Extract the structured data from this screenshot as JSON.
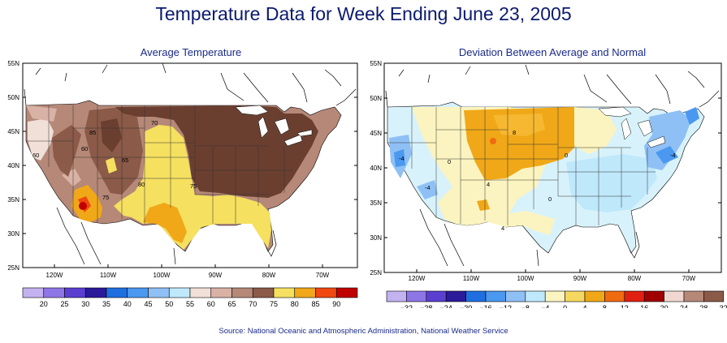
{
  "page": {
    "title": "Temperature Data for Week Ending June 23, 2005",
    "source": "Source:  National Oceanic and Atmospheric Administration, National Weather Service"
  },
  "maps": [
    {
      "id": "avg",
      "subtitle": "Average Temperature",
      "lat_labels": [
        "55N",
        "50N",
        "45N",
        "40N",
        "35N",
        "30N",
        "25N"
      ],
      "lon_labels": [
        "120W",
        "110W",
        "100W",
        "90W",
        "80W",
        "70W"
      ],
      "contour_labels": [
        "60",
        "65",
        "70",
        "75",
        "75",
        "75",
        "80",
        "85",
        "60"
      ],
      "legend": {
        "colors": [
          "#c3b2f0",
          "#8f76e6",
          "#5a3fd0",
          "#2b1a9a",
          "#1f6fe0",
          "#4a98f0",
          "#8fc0f5",
          "#bfe8fb",
          "#f0e0d8",
          "#d9b2a6",
          "#b58878",
          "#8b5a48",
          "#f5e060",
          "#f0a818",
          "#f04810",
          "#c00000"
        ],
        "labels": [
          "20",
          "25",
          "30",
          "35",
          "40",
          "45",
          "50",
          "55",
          "60",
          "65",
          "70",
          "75",
          "80",
          "85",
          "90"
        ]
      }
    },
    {
      "id": "dev",
      "subtitle": "Deviation Between Average and Normal",
      "lat_labels": [
        "55N",
        "50N",
        "45N",
        "40N",
        "35N",
        "30N",
        "25N"
      ],
      "lon_labels": [
        "120W",
        "110W",
        "100W",
        "90W",
        "80W",
        "70W"
      ],
      "contour_labels": [
        "4",
        "8",
        "0",
        "-4",
        "4",
        "-4",
        "0",
        "0",
        "-4"
      ],
      "legend": {
        "colors": [
          "#c3b2f0",
          "#8f76e6",
          "#5a3fd0",
          "#2b1a9a",
          "#1f6fe0",
          "#4a98f0",
          "#8fc0f5",
          "#bfe8fb",
          "#fbf4c0",
          "#f5d860",
          "#f0a818",
          "#f06a10",
          "#e02010",
          "#a00000",
          "#f0d8d0",
          "#b58878",
          "#8b5a48"
        ],
        "labels": [
          "-32",
          "-28",
          "-24",
          "-20",
          "-16",
          "-12",
          "-8",
          "-4",
          "0",
          "4",
          "8",
          "12",
          "16",
          "20",
          "24",
          "28",
          "32"
        ]
      }
    }
  ]
}
